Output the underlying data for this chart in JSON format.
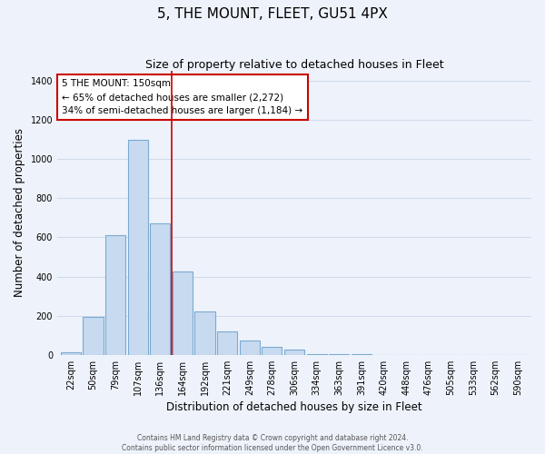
{
  "title": "5, THE MOUNT, FLEET, GU51 4PX",
  "subtitle": "Size of property relative to detached houses in Fleet",
  "xlabel": "Distribution of detached houses by size in Fleet",
  "ylabel": "Number of detached properties",
  "bar_labels": [
    "22sqm",
    "50sqm",
    "79sqm",
    "107sqm",
    "136sqm",
    "164sqm",
    "192sqm",
    "221sqm",
    "249sqm",
    "278sqm",
    "306sqm",
    "334sqm",
    "363sqm",
    "391sqm",
    "420sqm",
    "448sqm",
    "476sqm",
    "505sqm",
    "533sqm",
    "562sqm",
    "590sqm"
  ],
  "bar_values": [
    15,
    193,
    610,
    1100,
    670,
    425,
    222,
    120,
    75,
    40,
    28,
    5,
    3,
    2,
    0,
    0,
    0,
    0,
    0,
    0,
    0
  ],
  "bar_color": "#c8daf0",
  "bar_edge_color": "#7aaad0",
  "vline_x": 3.5,
  "vline_color": "#cc0000",
  "annotation_box_text": "5 THE MOUNT: 150sqm\n← 65% of detached houses are smaller (2,272)\n34% of semi-detached houses are larger (1,184) →",
  "box_edge_color": "#cc0000",
  "ylim": [
    0,
    1450
  ],
  "yticks": [
    0,
    200,
    400,
    600,
    800,
    1000,
    1200,
    1400
  ],
  "footer_line1": "Contains HM Land Registry data © Crown copyright and database right 2024.",
  "footer_line2": "Contains public sector information licensed under the Open Government Licence v3.0.",
  "bg_color": "#eef3fb",
  "grid_color": "#d0dcea",
  "title_fontsize": 11,
  "subtitle_fontsize": 9,
  "axis_label_fontsize": 8.5,
  "tick_fontsize": 7,
  "footer_fontsize": 5.5
}
